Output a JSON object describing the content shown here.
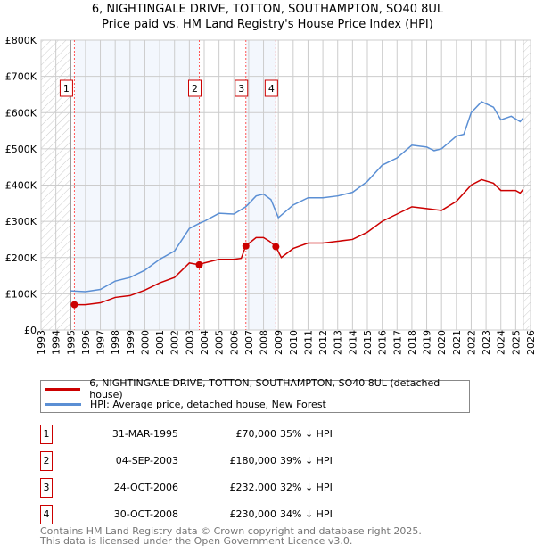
{
  "chart_data": {
    "type": "line",
    "title": "6, NIGHTINGALE DRIVE, TOTTON, SOUTHAMPTON, SO40 8UL",
    "subtitle": "Price paid vs. HM Land Registry's House Price Index (HPI)",
    "xlim": [
      1993,
      2026
    ],
    "ylim": [
      0,
      800000
    ],
    "x_ticks": [
      "1993",
      "1994",
      "1995",
      "1996",
      "1997",
      "1998",
      "1999",
      "2000",
      "2001",
      "2002",
      "2003",
      "2004",
      "2005",
      "2006",
      "2007",
      "2008",
      "2009",
      "2010",
      "2011",
      "2012",
      "2013",
      "2014",
      "2015",
      "2016",
      "2017",
      "2018",
      "2019",
      "2020",
      "2021",
      "2022",
      "2023",
      "2024",
      "2025",
      "2026"
    ],
    "y_ticks": [
      {
        "v": 0,
        "label": "£0"
      },
      {
        "v": 100000,
        "label": "£100K"
      },
      {
        "v": 200000,
        "label": "£200K"
      },
      {
        "v": 300000,
        "label": "£300K"
      },
      {
        "v": 400000,
        "label": "£400K"
      },
      {
        "v": 500000,
        "label": "£500K"
      },
      {
        "v": 600000,
        "label": "£600K"
      },
      {
        "v": 700000,
        "label": "£700K"
      },
      {
        "v": 800000,
        "label": "£800K"
      }
    ],
    "grid": true,
    "series": [
      {
        "name": "6, NIGHTINGALE DRIVE, TOTTON, SOUTHAMPTON, SO40 8UL (detached house)",
        "color": "#cc0000",
        "x": [
          1995.25,
          1996,
          1997,
          1998,
          1999,
          2000,
          2001,
          2002,
          2003,
          2003.67,
          2004,
          2005,
          2006,
          2006.5,
          2006.8,
          2007.5,
          2008,
          2008.4,
          2008.83,
          2009.2,
          2010,
          2011,
          2012,
          2013,
          2014,
          2015,
          2016,
          2017,
          2018,
          2019,
          2020,
          2021,
          2022,
          2022.7,
          2023.5,
          2024,
          2025,
          2025.3,
          2025.5
        ],
        "y": [
          70000,
          70000,
          75000,
          90000,
          95000,
          110000,
          130000,
          145000,
          185000,
          180000,
          185000,
          195000,
          195000,
          198000,
          232000,
          255000,
          255000,
          245000,
          230000,
          200000,
          225000,
          240000,
          240000,
          245000,
          250000,
          270000,
          300000,
          320000,
          340000,
          335000,
          330000,
          355000,
          400000,
          415000,
          405000,
          385000,
          385000,
          378000,
          388000
        ]
      },
      {
        "name": "HPI: Average price, detached house, New Forest",
        "color": "#5b8fd4",
        "x": [
          1995,
          1996,
          1997,
          1998,
          1999,
          2000,
          2001,
          2002,
          2003,
          2003.7,
          2004,
          2005,
          2006,
          2006.8,
          2007.5,
          2008,
          2008.5,
          2009,
          2010,
          2011,
          2012,
          2013,
          2014,
          2015,
          2016,
          2017,
          2018,
          2019,
          2019.5,
          2020,
          2021,
          2021.5,
          2022,
          2022.7,
          2023.5,
          2024,
          2024.7,
          2025.3,
          2025.5
        ],
        "y": [
          108000,
          106000,
          112000,
          135000,
          145000,
          165000,
          195000,
          218000,
          280000,
          295000,
          300000,
          322000,
          320000,
          340000,
          370000,
          375000,
          360000,
          310000,
          345000,
          365000,
          365000,
          370000,
          380000,
          410000,
          455000,
          475000,
          510000,
          505000,
          495000,
          500000,
          535000,
          540000,
          600000,
          630000,
          615000,
          580000,
          590000,
          575000,
          585000
        ]
      }
    ],
    "sales": [
      {
        "id": "1",
        "x": 1995.25,
        "price": 70000,
        "date": "31-MAR-1995",
        "price_label": "£70,000",
        "hpi": "35% ↓ HPI"
      },
      {
        "id": "2",
        "x": 2003.67,
        "price": 180000,
        "date": "04-SEP-2003",
        "price_label": "£180,000",
        "hpi": "39% ↓ HPI"
      },
      {
        "id": "3",
        "x": 2006.81,
        "price": 232000,
        "date": "24-OCT-2006",
        "price_label": "£232,000",
        "hpi": "32% ↓ HPI"
      },
      {
        "id": "4",
        "x": 2008.83,
        "price": 230000,
        "date": "30-OCT-2008",
        "price_label": "£230,000",
        "hpi": "34% ↓ HPI"
      }
    ],
    "legend_position": "below"
  },
  "footer": {
    "line1": "Contains HM Land Registry data © Crown copyright and database right 2025.",
    "line2": "This data is licensed under the Open Government Licence v3.0."
  }
}
